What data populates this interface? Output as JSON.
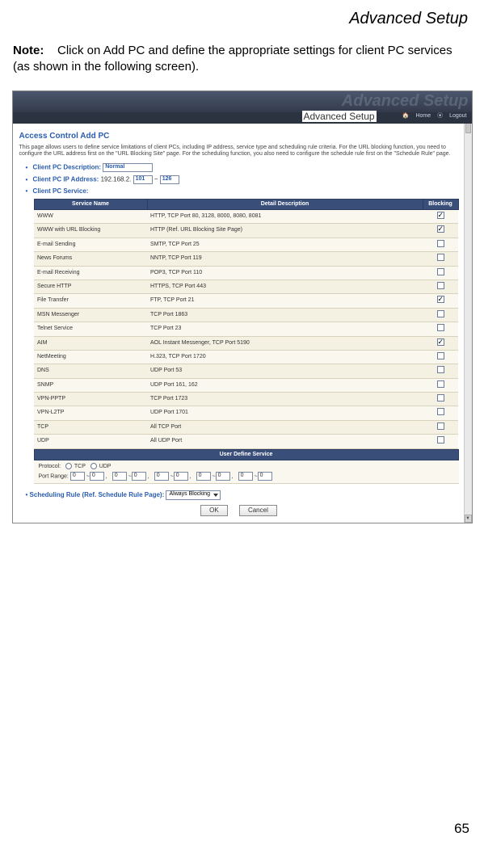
{
  "page_header": "Advanced Setup",
  "note": {
    "label": "Note:",
    "text": "Click on Add PC and define the appropriate settings for client PC services (as shown in the following screen)."
  },
  "screenshot": {
    "ghost_title": "Advanced Setup",
    "band_label": "Advanced Setup",
    "topnav": {
      "home": "Home",
      "logout": "Logout"
    },
    "title": "Access Control Add PC",
    "intro": "This page allows users to define service limitations of client PCs, including IP address, service type and scheduling rule criteria. For the URL blocking function, you need to configure the URL address first on the \"URL Blocking Site\" page. For the scheduling function, you also need to configure the schedule rule first on the \"Schedule Rule\" page.",
    "desc_label": "Client PC Description:",
    "desc_value": "Normal",
    "ip_label": "Client PC IP Address:",
    "ip_prefix": "192.168.2.",
    "ip_from": "101",
    "ip_to": "126",
    "svc_label": "Client PC Service:",
    "columns": {
      "name": "Service Name",
      "detail": "Detail Description",
      "block": "Blocking"
    },
    "rows": [
      {
        "name": "WWW",
        "detail": "HTTP, TCP Port 80, 3128, 8000, 8080, 8081",
        "checked": true
      },
      {
        "name": "WWW with URL Blocking",
        "detail": "HTTP (Ref. URL Blocking Site Page)",
        "checked": true
      },
      {
        "name": "E-mail Sending",
        "detail": "SMTP, TCP Port 25",
        "checked": false
      },
      {
        "name": "News Forums",
        "detail": "NNTP, TCP Port 119",
        "checked": false
      },
      {
        "name": "E-mail Receiving",
        "detail": "POP3, TCP Port 110",
        "checked": false
      },
      {
        "name": "Secure HTTP",
        "detail": "HTTPS, TCP Port 443",
        "checked": false
      },
      {
        "name": "File Transfer",
        "detail": "FTP, TCP Port 21",
        "checked": true
      },
      {
        "name": "MSN Messenger",
        "detail": "TCP Port 1863",
        "checked": false
      },
      {
        "name": "Telnet Service",
        "detail": "TCP Port 23",
        "checked": false
      },
      {
        "name": "AIM",
        "detail": "AOL Instant Messenger, TCP Port 5190",
        "checked": true
      },
      {
        "name": "NetMeeting",
        "detail": "H.323, TCP Port 1720",
        "checked": false
      },
      {
        "name": "DNS",
        "detail": "UDP Port 53",
        "checked": false
      },
      {
        "name": "SNMP",
        "detail": "UDP Port 161, 162",
        "checked": false
      },
      {
        "name": "VPN-PPTP",
        "detail": "TCP Port 1723",
        "checked": false
      },
      {
        "name": "VPN-L2TP",
        "detail": "UDP Port 1701",
        "checked": false
      },
      {
        "name": "TCP",
        "detail": "All TCP Port",
        "checked": false
      },
      {
        "name": "UDP",
        "detail": "All UDP Port",
        "checked": false
      }
    ],
    "uds": {
      "header": "User Define Service",
      "protocol_label": "Protocol:",
      "tcp": "TCP",
      "udp": "UDP",
      "port_label": "Port Range:",
      "zeros": "0"
    },
    "sched_label": "Scheduling Rule (Ref. Schedule Rule Page):",
    "sched_value": "Always Blocking",
    "ok": "OK",
    "cancel": "Cancel"
  },
  "page_number": "65",
  "colors": {
    "table_header": "#3a4e7a",
    "row_bg": "#faf8ee",
    "link_blue": "#2a5db0"
  }
}
